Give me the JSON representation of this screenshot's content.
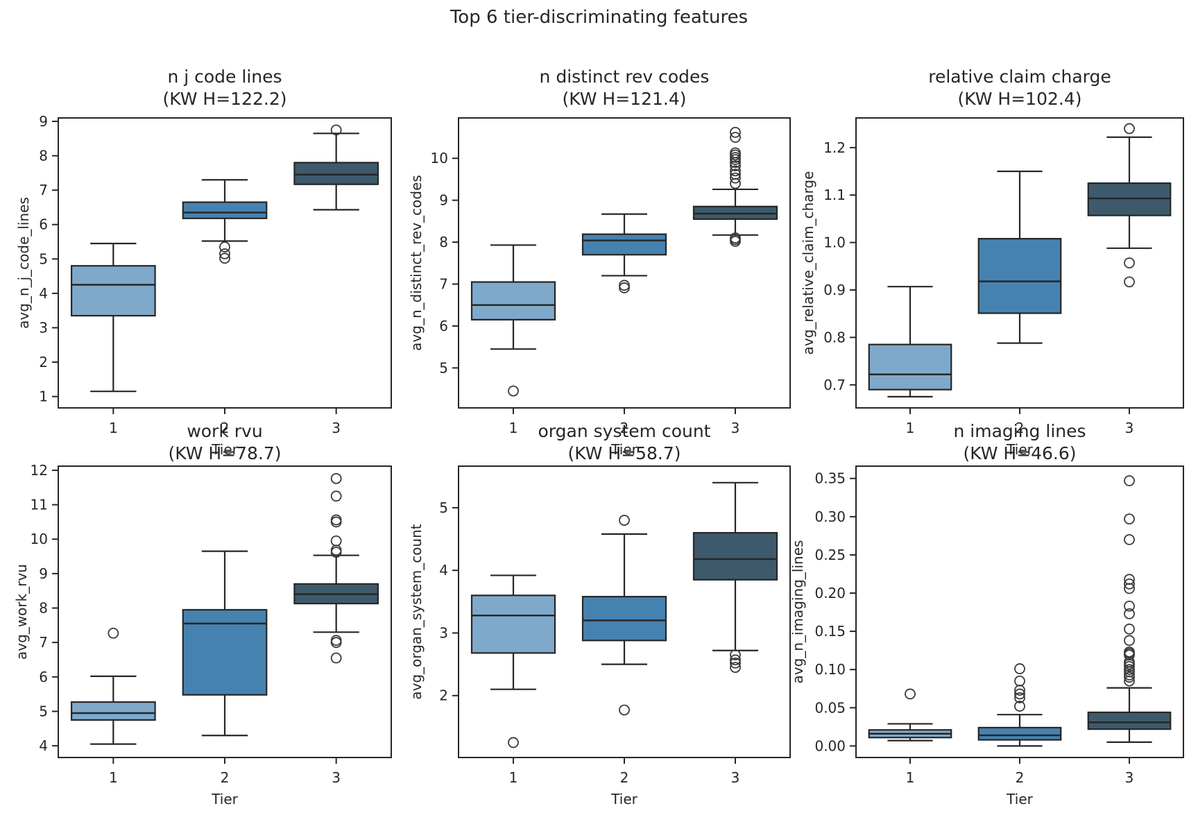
{
  "figure": {
    "title": "Top 6 tier-discriminating features",
    "background": "#ffffff",
    "text_color": "#262626"
  },
  "palette": {
    "tier1": "#7FA9CB",
    "tier2": "#4682B0",
    "tier3": "#3D5A6C",
    "box_edge": "#262626",
    "outlier_edge": "#3A3A3A"
  },
  "chart_data": [
    {
      "type": "boxplot",
      "title": "n j code lines",
      "subtitle": "(KW H=122.2)",
      "kw_h": 122.2,
      "ylabel": "avg_n_j_code_lines",
      "xlabel": "Tier",
      "categories": [
        "1",
        "2",
        "3"
      ],
      "ylim": [
        0.65,
        9.12
      ],
      "yticks": [
        1,
        2,
        3,
        4,
        5,
        6,
        7,
        8,
        9
      ],
      "ytick_labels": [
        "1",
        "2",
        "3",
        "4",
        "5",
        "6",
        "7",
        "8",
        "9"
      ],
      "grid": false,
      "boxes": [
        {
          "tier": "1",
          "color": "tier1",
          "whisker_low": 1.15,
          "q1": 3.35,
          "median": 4.25,
          "q3": 4.8,
          "whisker_high": 5.45,
          "outliers": []
        },
        {
          "tier": "2",
          "color": "tier2",
          "whisker_low": 5.52,
          "q1": 6.18,
          "median": 6.35,
          "q3": 6.65,
          "whisker_high": 7.3,
          "outliers": [
            5.35,
            5.15,
            5.02
          ]
        },
        {
          "tier": "3",
          "color": "tier3",
          "whisker_low": 6.43,
          "q1": 7.17,
          "median": 7.45,
          "q3": 7.8,
          "whisker_high": 8.65,
          "outliers": [
            8.75
          ]
        }
      ]
    },
    {
      "type": "boxplot",
      "title": "n distinct rev codes",
      "subtitle": "(KW H=121.4)",
      "kw_h": 121.4,
      "ylabel": "avg_n_distinct_rev_codes",
      "xlabel": "Tier",
      "categories": [
        "1",
        "2",
        "3"
      ],
      "ylim": [
        4.03,
        10.98
      ],
      "yticks": [
        5,
        6,
        7,
        8,
        9,
        10
      ],
      "ytick_labels": [
        "5",
        "6",
        "7",
        "8",
        "9",
        "10"
      ],
      "grid": false,
      "boxes": [
        {
          "tier": "1",
          "color": "tier1",
          "whisker_low": 5.45,
          "q1": 6.15,
          "median": 6.5,
          "q3": 7.05,
          "whisker_high": 7.93,
          "outliers": [
            4.45
          ]
        },
        {
          "tier": "2",
          "color": "tier2",
          "whisker_low": 7.2,
          "q1": 7.7,
          "median": 8.04,
          "q3": 8.19,
          "whisker_high": 8.67,
          "outliers": [
            6.97,
            6.91
          ]
        },
        {
          "tier": "3",
          "color": "tier3",
          "whisker_low": 8.17,
          "q1": 8.55,
          "median": 8.68,
          "q3": 8.85,
          "whisker_high": 9.26,
          "outliers": [
            8.02,
            8.06,
            8.1,
            9.4,
            9.53,
            9.62,
            9.7,
            9.82,
            9.9,
            9.97,
            10.02,
            10.08,
            10.13,
            10.5,
            10.62
          ]
        }
      ]
    },
    {
      "type": "boxplot",
      "title": "relative claim charge",
      "subtitle": "(KW H=102.4)",
      "kw_h": 102.4,
      "ylabel": "avg_relative_claim_charge",
      "xlabel": "Tier",
      "categories": [
        "1",
        "2",
        "3"
      ],
      "ylim": [
        0.65,
        1.264
      ],
      "yticks": [
        0.7,
        0.8,
        0.9,
        1.0,
        1.1,
        1.2
      ],
      "ytick_labels": [
        "0.7",
        "0.8",
        "0.9",
        "1.0",
        "1.1",
        "1.2"
      ],
      "grid": false,
      "boxes": [
        {
          "tier": "1",
          "color": "tier1",
          "whisker_low": 0.675,
          "q1": 0.69,
          "median": 0.722,
          "q3": 0.785,
          "whisker_high": 0.907,
          "outliers": []
        },
        {
          "tier": "2",
          "color": "tier2",
          "whisker_low": 0.788,
          "q1": 0.851,
          "median": 0.918,
          "q3": 1.008,
          "whisker_high": 1.15,
          "outliers": []
        },
        {
          "tier": "3",
          "color": "tier3",
          "whisker_low": 0.988,
          "q1": 1.057,
          "median": 1.093,
          "q3": 1.125,
          "whisker_high": 1.222,
          "outliers": [
            1.24,
            0.957,
            0.917
          ]
        }
      ]
    },
    {
      "type": "boxplot",
      "title": "work rvu",
      "subtitle": "(KW H=78.7)",
      "kw_h": 78.7,
      "ylabel": "avg_work_rvu",
      "xlabel": "Tier",
      "categories": [
        "1",
        "2",
        "3"
      ],
      "ylim": [
        3.64,
        12.14
      ],
      "yticks": [
        4,
        5,
        6,
        7,
        8,
        9,
        10,
        11,
        12
      ],
      "ytick_labels": [
        "4",
        "5",
        "6",
        "7",
        "8",
        "9",
        "10",
        "11",
        "12"
      ],
      "grid": false,
      "boxes": [
        {
          "tier": "1",
          "color": "tier1",
          "whisker_low": 4.05,
          "q1": 4.75,
          "median": 4.95,
          "q3": 5.27,
          "whisker_high": 6.02,
          "outliers": [
            7.27
          ]
        },
        {
          "tier": "2",
          "color": "tier2",
          "whisker_low": 4.3,
          "q1": 5.48,
          "median": 7.55,
          "q3": 7.95,
          "whisker_high": 9.65,
          "outliers": []
        },
        {
          "tier": "3",
          "color": "tier3",
          "whisker_low": 7.3,
          "q1": 8.13,
          "median": 8.4,
          "q3": 8.7,
          "whisker_high": 9.53,
          "outliers": [
            6.55,
            7.0,
            7.06,
            9.62,
            9.68,
            9.95,
            10.5,
            10.56,
            11.25,
            11.76
          ]
        }
      ]
    },
    {
      "type": "boxplot",
      "title": "organ system count",
      "subtitle": "(KW H=58.7)",
      "kw_h": 58.7,
      "ylabel": "avg_organ_system_count",
      "xlabel": "Tier",
      "categories": [
        "1",
        "2",
        "3"
      ],
      "ylim": [
        1.0,
        5.675
      ],
      "yticks": [
        2,
        3,
        4,
        5
      ],
      "ytick_labels": [
        "2",
        "3",
        "4",
        "5"
      ],
      "grid": false,
      "boxes": [
        {
          "tier": "1",
          "color": "tier1",
          "whisker_low": 2.1,
          "q1": 2.68,
          "median": 3.28,
          "q3": 3.6,
          "whisker_high": 3.92,
          "outliers": [
            1.25
          ]
        },
        {
          "tier": "2",
          "color": "tier2",
          "whisker_low": 2.5,
          "q1": 2.88,
          "median": 3.2,
          "q3": 3.58,
          "whisker_high": 4.58,
          "outliers": [
            4.8,
            1.77
          ]
        },
        {
          "tier": "3",
          "color": "tier3",
          "whisker_low": 2.72,
          "q1": 3.85,
          "median": 4.18,
          "q3": 4.6,
          "whisker_high": 5.4,
          "outliers": [
            2.65,
            2.57,
            2.52,
            2.45
          ]
        }
      ]
    },
    {
      "type": "boxplot",
      "title": "n imaging lines",
      "subtitle": "(KW H=46.6)",
      "kw_h": 46.6,
      "ylabel": "avg_n_imaging_lines",
      "xlabel": "Tier",
      "categories": [
        "1",
        "2",
        "3"
      ],
      "ylim": [
        -0.016,
        0.367
      ],
      "yticks": [
        0.0,
        0.05,
        0.1,
        0.15,
        0.2,
        0.25,
        0.3,
        0.35
      ],
      "ytick_labels": [
        "0.00",
        "0.05",
        "0.10",
        "0.15",
        "0.20",
        "0.25",
        "0.30",
        "0.35"
      ],
      "grid": false,
      "boxes": [
        {
          "tier": "1",
          "color": "tier1",
          "whisker_low": 0.007,
          "q1": 0.011,
          "median": 0.016,
          "q3": 0.021,
          "whisker_high": 0.029,
          "outliers": [
            0.068
          ]
        },
        {
          "tier": "2",
          "color": "tier2",
          "whisker_low": 0.0,
          "q1": 0.008,
          "median": 0.014,
          "q3": 0.024,
          "whisker_high": 0.041,
          "outliers": [
            0.052,
            0.063,
            0.068,
            0.073,
            0.085,
            0.101
          ]
        },
        {
          "tier": "3",
          "color": "tier3",
          "whisker_low": 0.005,
          "q1": 0.022,
          "median": 0.031,
          "q3": 0.044,
          "whisker_high": 0.076,
          "outliers": [
            0.085,
            0.09,
            0.093,
            0.097,
            0.1,
            0.104,
            0.107,
            0.11,
            0.119,
            0.121,
            0.123,
            0.138,
            0.153,
            0.173,
            0.183,
            0.206,
            0.212,
            0.218,
            0.27,
            0.297,
            0.347
          ]
        }
      ]
    }
  ]
}
